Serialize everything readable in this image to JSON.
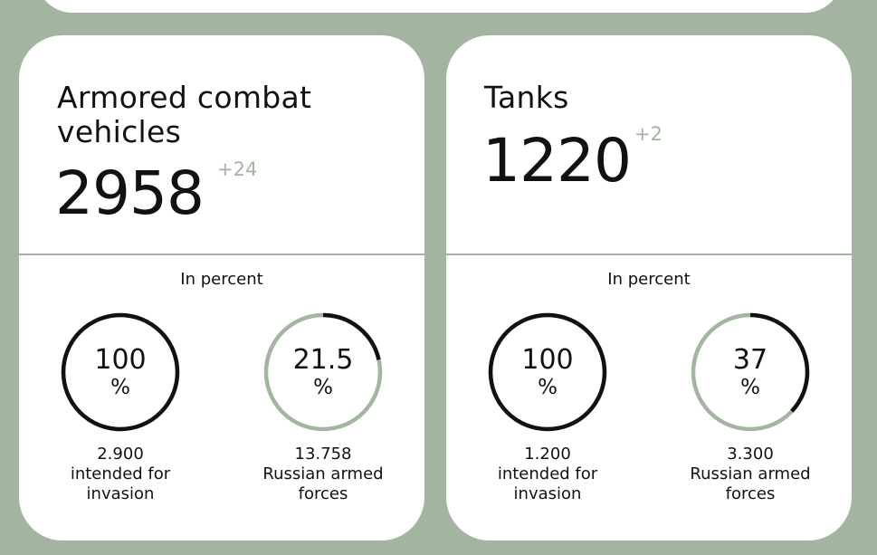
{
  "cards": [
    {
      "title": "Armored combat vehicles",
      "count": "2958",
      "delta": "+24",
      "section_label": "In percent",
      "rings": [
        {
          "value": "100",
          "unit": "%",
          "fraction": 1.0,
          "caption_number": "2.900",
          "caption_text": "intended for invasion"
        },
        {
          "value": "21.5",
          "unit": "%",
          "fraction": 0.215,
          "caption_number": "13.758",
          "caption_text": "Russian armed forces"
        }
      ]
    },
    {
      "title": "Tanks",
      "count": "1220",
      "delta": "+2",
      "section_label": "In percent",
      "rings": [
        {
          "value": "100",
          "unit": "%",
          "fraction": 1.0,
          "caption_number": "1.200",
          "caption_text": "intended for invasion"
        },
        {
          "value": "37",
          "unit": "%",
          "fraction": 0.37,
          "caption_number": "3.300",
          "caption_text": "Russian armed forces"
        }
      ]
    }
  ],
  "colors": {
    "background": "#a3b5a0",
    "card": "#ffffff",
    "accent": "#a3b5a0",
    "ring_fill": "#111111"
  }
}
